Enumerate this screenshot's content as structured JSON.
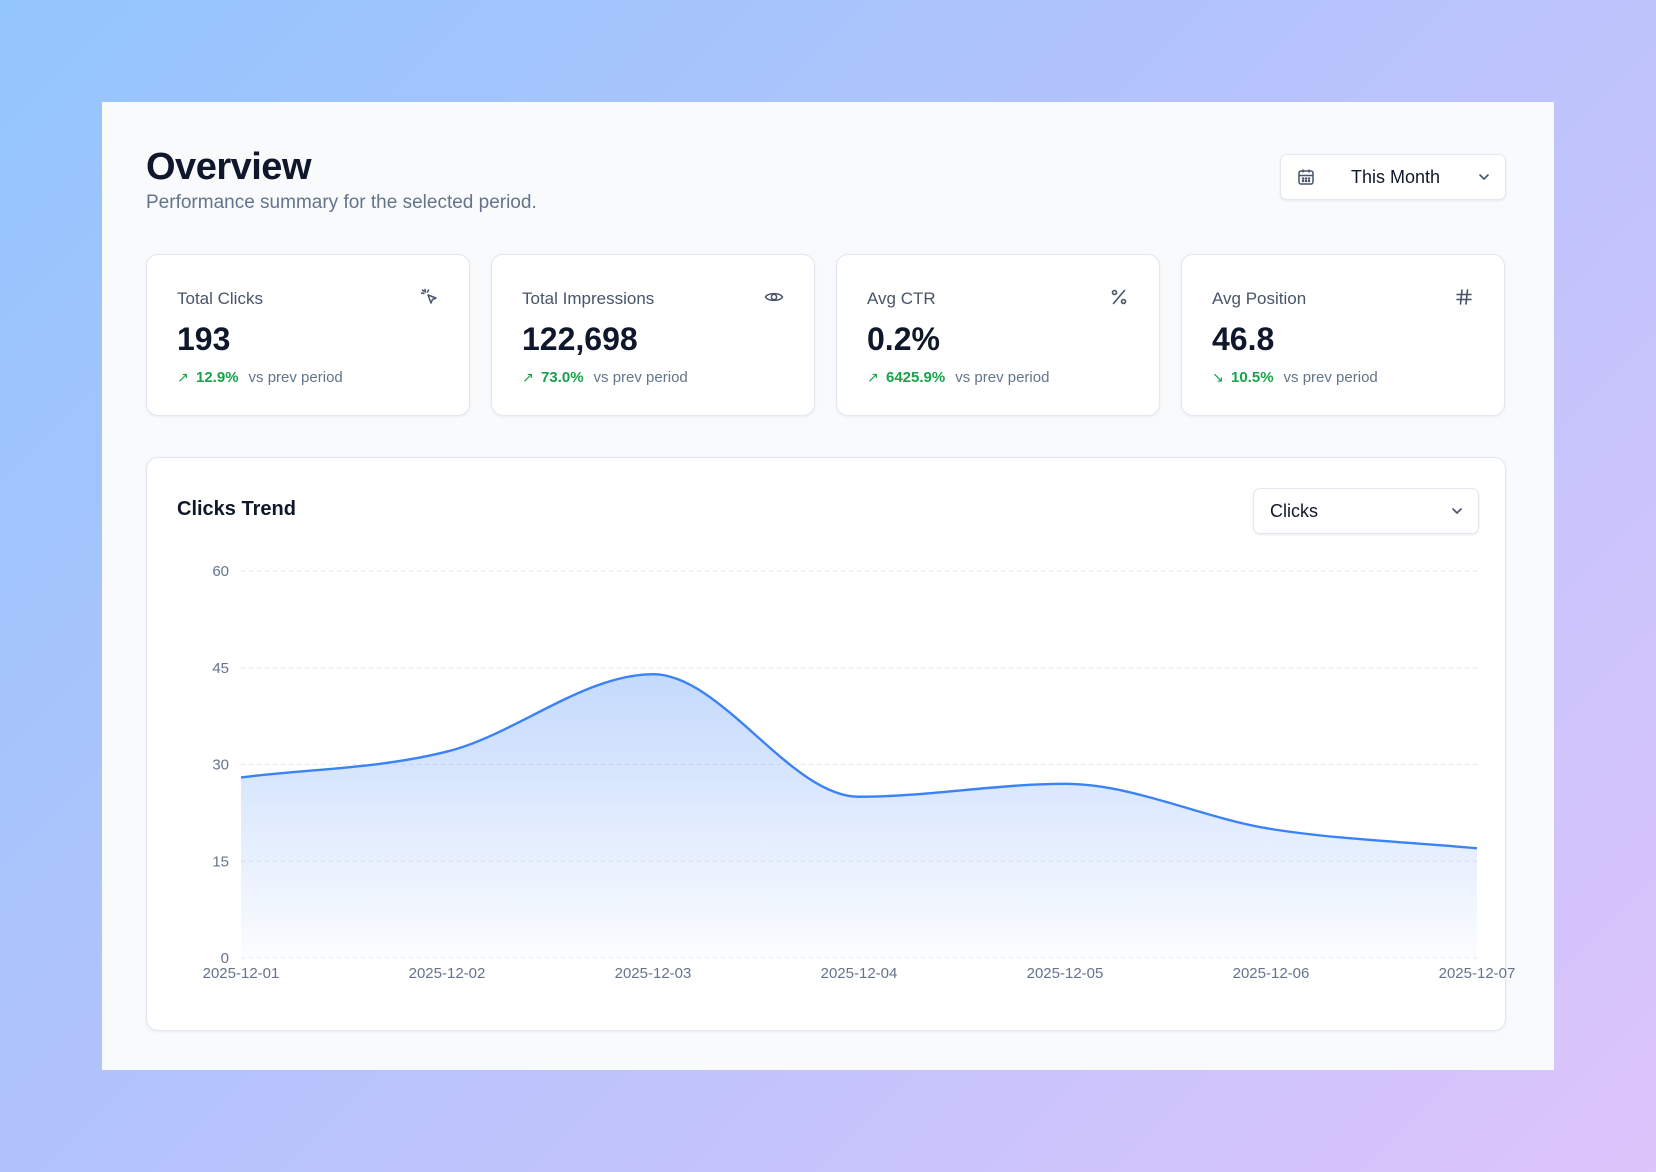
{
  "header": {
    "title": "Overview",
    "subtitle": "Performance summary for the selected period."
  },
  "date_range": {
    "label": "This Month",
    "icon": "calendar-icon"
  },
  "cards": [
    {
      "label": "Total Clicks",
      "value": "193",
      "delta": "12.9%",
      "direction": "up",
      "vs": "vs prev period",
      "icon": "cursor-click-icon"
    },
    {
      "label": "Total Impressions",
      "value": "122,698",
      "delta": "73.0%",
      "direction": "up",
      "vs": "vs prev period",
      "icon": "eye-icon"
    },
    {
      "label": "Avg CTR",
      "value": "0.2%",
      "delta": "6425.9%",
      "direction": "up",
      "vs": "vs prev period",
      "icon": "percent-icon"
    },
    {
      "label": "Avg Position",
      "value": "46.8",
      "delta": "10.5%",
      "direction": "down",
      "vs": "vs prev period",
      "icon": "hash-icon"
    }
  ],
  "chart": {
    "title": "Clicks Trend",
    "metric_select": {
      "label": "Clicks"
    }
  },
  "colors": {
    "accent": "#3b82f6",
    "positive": "#16a34a"
  },
  "chart_data": {
    "type": "area",
    "x": [
      "2025-12-01",
      "2025-12-02",
      "2025-12-03",
      "2025-12-04",
      "2025-12-05",
      "2025-12-06",
      "2025-12-07"
    ],
    "series": [
      {
        "values": [
          28,
          32,
          44,
          25,
          27,
          20,
          17
        ]
      }
    ],
    "yticks": [
      0,
      15,
      30,
      45,
      60
    ],
    "ylim": [
      0,
      60
    ],
    "grid": true,
    "legend": "none"
  }
}
